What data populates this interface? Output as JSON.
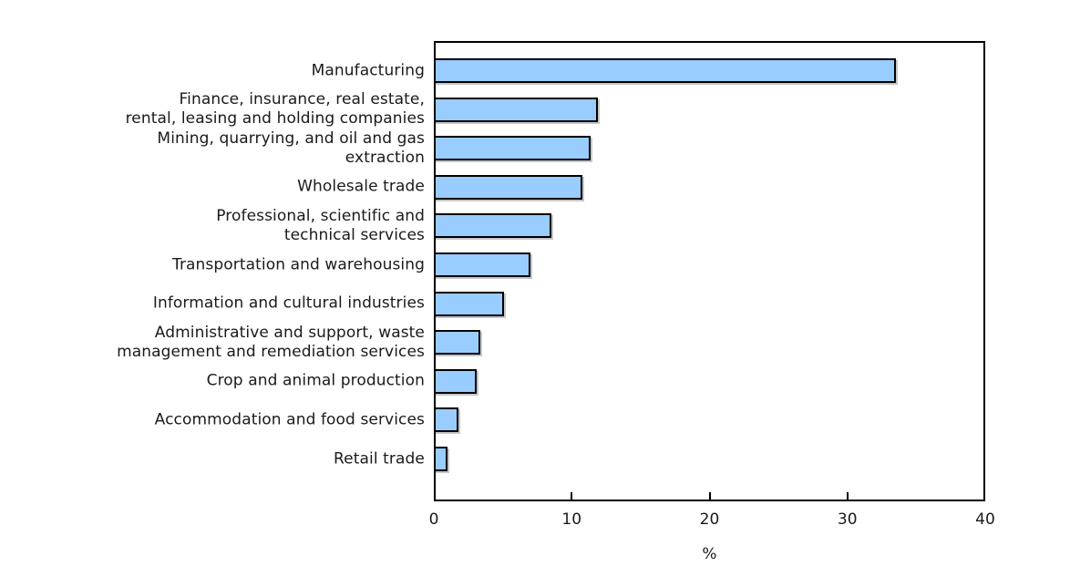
{
  "chart_data": {
    "type": "bar",
    "orientation": "horizontal",
    "title": "",
    "categories": [
      "Manufacturing",
      "Finance, insurance, real estate,\nrental, leasing and holding companies",
      "Mining, quarrying, and oil and gas\nextraction",
      "Wholesale trade",
      "Professional, scientific and\ntechnical services",
      "Transportation and warehousing",
      "Information and cultural industries",
      "Administrative and support, waste\nmanagement and remediation services",
      "Crop and animal production",
      "Accommodation and food services",
      "Retail trade"
    ],
    "values": [
      33.5,
      11.9,
      11.4,
      10.8,
      8.5,
      7.0,
      5.1,
      3.4,
      3.1,
      1.8,
      1.0
    ],
    "xlabel": "%",
    "xlim": [
      0,
      40
    ],
    "xticks": [
      0,
      10,
      20,
      30,
      40
    ],
    "grid": false,
    "legend": false,
    "bar_color": "#99ccff",
    "bar_border_color": "#000000"
  }
}
